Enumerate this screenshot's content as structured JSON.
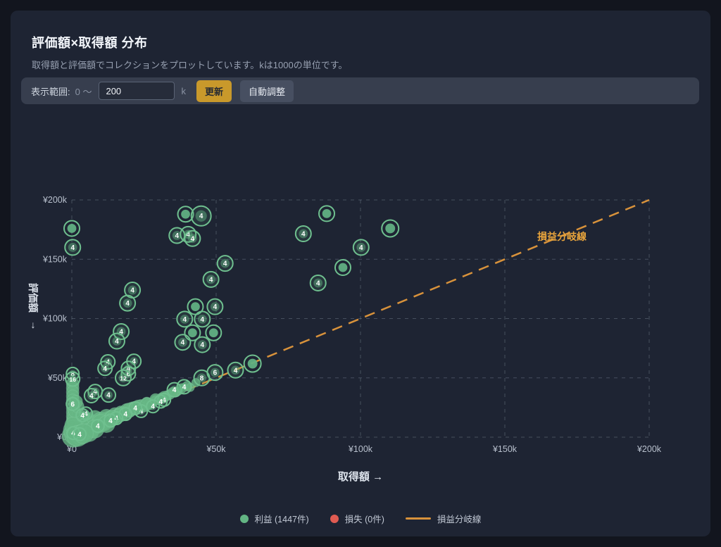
{
  "page": {
    "title": "評価額×取得額 分布",
    "subtitle": "取得額と評価額でコレクションをプロットしています。kは1000の単位です。"
  },
  "controls": {
    "label": "表示範囲:",
    "range_prefix": "0 ～",
    "input_value": "200",
    "unit": "k",
    "update_button": "更新",
    "auto_button": "自動調整"
  },
  "chart_data": {
    "type": "scatter",
    "xlabel": "取得額 →",
    "ylabel": "評価額",
    "ylabel_arrow": "↓",
    "xlim": [
      0,
      200
    ],
    "ylim": [
      0,
      200
    ],
    "unit": "k (×1000 yen)",
    "grid": true,
    "x_ticks": [
      {
        "value": 0,
        "label": "¥0"
      },
      {
        "value": 50,
        "label": "¥50k"
      },
      {
        "value": 100,
        "label": "¥100k"
      },
      {
        "value": 150,
        "label": "¥150k"
      },
      {
        "value": 200,
        "label": "¥200k"
      }
    ],
    "y_ticks": [
      {
        "value": 0,
        "label": "¥0"
      },
      {
        "value": 50,
        "label": "¥50k"
      },
      {
        "value": 100,
        "label": "¥100k"
      },
      {
        "value": 150,
        "label": "¥150k"
      },
      {
        "value": 200,
        "label": "¥200k"
      }
    ],
    "breakeven_line": {
      "from": [
        0,
        0
      ],
      "to": [
        200,
        200
      ],
      "label": "損益分岐線",
      "color": "#d8923b",
      "style": "dashed"
    },
    "legend": [
      {
        "key": "profit",
        "label": "利益 (1447件)",
        "marker": "dot",
        "color": "#63b584"
      },
      {
        "key": "loss",
        "label": "損失 (0件)",
        "marker": "dot",
        "color": "#e05b52"
      },
      {
        "key": "breakeven",
        "label": "損益分岐線",
        "marker": "line",
        "color": "#d8923b"
      }
    ],
    "series": [
      {
        "name": "利益",
        "count": 1447,
        "color": "#63b584",
        "point_format": "[x_k, y_k, radius_px, kind(0=blob,1=single,2=count-bubble), count_label?]",
        "points": [
          [
            0,
            176,
            11,
            1
          ],
          [
            0.3,
            160,
            11,
            2,
            "4"
          ],
          [
            39.4,
            188,
            11,
            1
          ],
          [
            44.8,
            186.5,
            14,
            2,
            "4"
          ],
          [
            36.4,
            170,
            11,
            2,
            "4"
          ],
          [
            40.3,
            171,
            11,
            2,
            "4"
          ],
          [
            41.8,
            167.5,
            11,
            2,
            "4"
          ],
          [
            53.1,
            146.5,
            11,
            2,
            "4"
          ],
          [
            48.2,
            133,
            11,
            2,
            "4"
          ],
          [
            21,
            124,
            11,
            2,
            "4"
          ],
          [
            19.3,
            113,
            11,
            2,
            "4"
          ],
          [
            42.8,
            110,
            11,
            1
          ],
          [
            49.6,
            110,
            11,
            2,
            "4"
          ],
          [
            39.1,
            99.5,
            11,
            2,
            "4"
          ],
          [
            45.2,
            99.5,
            11,
            2,
            "4"
          ],
          [
            17.1,
            89,
            11,
            2,
            "4"
          ],
          [
            41.8,
            88,
            11,
            1
          ],
          [
            49.1,
            88,
            11,
            1
          ],
          [
            88.3,
            188.5,
            11,
            1
          ],
          [
            80.2,
            171.5,
            11,
            2,
            "4"
          ],
          [
            110.3,
            176,
            12,
            1
          ],
          [
            100.2,
            160,
            11,
            2,
            "4"
          ],
          [
            93.9,
            143,
            11,
            1
          ],
          [
            85.3,
            130,
            11,
            2,
            "4"
          ],
          [
            15.6,
            81,
            11,
            2,
            "4"
          ],
          [
            38.4,
            80,
            11,
            2,
            "4"
          ],
          [
            45.2,
            78,
            11,
            2,
            "4"
          ],
          [
            12.5,
            63.5,
            10,
            2,
            "4"
          ],
          [
            21.5,
            64,
            10,
            2,
            "4"
          ],
          [
            11.5,
            58,
            10,
            2,
            "4"
          ],
          [
            19.6,
            58,
            10,
            2,
            "4"
          ],
          [
            19.6,
            53.5,
            10,
            2,
            "6"
          ],
          [
            17.8,
            50,
            11,
            2,
            "12"
          ],
          [
            8.1,
            38.5,
            10,
            2,
            "4"
          ],
          [
            6.8,
            35,
            10,
            2,
            "4"
          ],
          [
            12.7,
            35.5,
            10,
            2,
            "4"
          ],
          [
            45,
            50,
            11,
            2,
            "8"
          ],
          [
            49.6,
            54.5,
            11,
            2,
            "6"
          ],
          [
            56.7,
            56.5,
            11,
            2,
            "4"
          ],
          [
            62.6,
            62,
            12,
            1
          ],
          [
            38.9,
            42.5,
            10,
            2,
            "4"
          ],
          [
            35.5,
            40,
            10,
            2,
            "4"
          ],
          [
            0.3,
            53.5,
            9,
            2,
            "8"
          ],
          [
            0.3,
            49,
            10,
            2,
            "16"
          ],
          [
            0.3,
            45,
            9,
            0
          ],
          [
            0.3,
            41.5,
            9,
            0
          ],
          [
            0.3,
            38,
            9,
            0
          ],
          [
            0.3,
            34.5,
            9,
            0
          ],
          [
            0.3,
            31,
            9,
            0
          ],
          [
            0.3,
            28,
            9,
            2,
            "6"
          ],
          [
            0.3,
            24.5,
            9,
            0
          ],
          [
            0.3,
            21,
            9,
            0
          ],
          [
            0.3,
            17.5,
            9,
            0
          ],
          [
            0.3,
            14,
            9,
            0
          ],
          [
            32,
            31.5,
            9,
            2,
            "4"
          ],
          [
            30.8,
            30,
            9,
            2,
            "4"
          ],
          [
            28.1,
            26,
            9,
            2,
            "4"
          ],
          [
            24,
            22,
            9,
            2,
            "4"
          ],
          [
            22,
            24.5,
            9,
            2,
            "4"
          ],
          [
            18.6,
            19.5,
            9,
            2,
            "4"
          ],
          [
            15.4,
            16,
            9,
            2,
            "4"
          ],
          [
            13.4,
            14,
            9,
            2,
            "4"
          ],
          [
            9,
            9.5,
            9,
            2,
            "4"
          ],
          [
            4.9,
            20,
            9,
            2,
            "4"
          ],
          [
            3.7,
            18.5,
            9,
            2,
            "4"
          ],
          [
            0.5,
            3.5,
            9,
            2,
            "4"
          ],
          [
            2.7,
            2.5,
            9,
            2,
            "4"
          ],
          [
            0.5,
            1,
            16,
            0
          ],
          [
            1.5,
            3,
            17,
            0
          ],
          [
            3,
            5,
            16,
            0
          ],
          [
            4.5,
            7,
            15,
            0
          ],
          [
            6,
            8,
            15,
            0
          ],
          [
            2,
            11,
            13,
            0
          ],
          [
            1,
            15,
            11,
            0
          ],
          [
            2.5,
            18,
            10,
            0
          ],
          [
            4,
            14,
            12,
            0
          ],
          [
            6,
            13,
            12,
            0
          ],
          [
            8,
            11,
            13,
            0
          ],
          [
            5,
            7,
            15,
            0
          ],
          [
            7,
            9,
            14,
            0
          ],
          [
            9,
            11,
            13,
            0
          ],
          [
            11,
            13,
            13,
            0
          ],
          [
            13,
            15,
            12,
            0
          ],
          [
            8,
            16,
            11,
            0
          ],
          [
            10,
            14,
            12,
            0
          ],
          [
            12,
            17,
            11,
            0
          ],
          [
            14,
            16,
            11,
            0
          ],
          [
            15,
            19,
            10,
            0
          ],
          [
            16,
            18,
            10,
            0
          ],
          [
            17,
            21,
            9,
            0
          ],
          [
            18,
            20,
            10,
            0
          ],
          [
            19,
            23,
            9,
            0
          ],
          [
            20,
            22,
            9,
            0
          ],
          [
            21,
            25,
            8,
            0
          ],
          [
            22,
            24,
            9,
            0
          ],
          [
            24,
            27,
            8,
            0
          ],
          [
            25,
            26,
            8,
            0
          ],
          [
            26,
            29,
            8,
            0
          ],
          [
            27,
            28,
            8,
            0
          ],
          [
            29,
            31,
            7,
            0
          ],
          [
            31,
            33,
            7,
            0
          ],
          [
            33,
            35,
            7,
            0
          ],
          [
            34,
            36,
            7,
            0
          ],
          [
            36,
            38,
            7,
            0
          ],
          [
            37,
            39,
            6,
            0
          ],
          [
            40,
            43,
            7,
            0
          ],
          [
            41,
            42,
            6,
            0
          ],
          [
            43,
            46,
            6,
            0
          ],
          [
            10,
            12,
            12,
            0
          ],
          [
            14,
            16,
            11,
            0
          ],
          [
            17,
            19,
            10,
            0
          ],
          [
            20,
            23,
            10,
            0
          ],
          [
            23,
            26,
            9,
            0
          ],
          [
            26,
            28,
            9,
            0
          ],
          [
            29,
            32,
            8,
            0
          ],
          [
            32,
            34,
            8,
            0
          ],
          [
            35,
            38,
            7,
            0
          ],
          [
            38,
            41,
            7,
            0
          ],
          [
            0.5,
            6,
            14,
            0
          ],
          [
            0.5,
            10,
            12,
            0
          ],
          [
            1,
            22,
            9,
            0
          ],
          [
            2,
            26,
            9,
            0
          ],
          [
            1.5,
            30,
            9,
            0
          ],
          [
            3,
            2,
            14,
            0
          ],
          [
            6,
            4,
            13,
            0
          ],
          [
            2,
            1,
            15,
            0
          ],
          [
            8,
            7,
            13,
            0
          ],
          [
            12,
            11,
            12,
            0
          ],
          [
            4,
            3,
            14,
            0
          ]
        ]
      },
      {
        "name": "損失",
        "count": 0,
        "color": "#e05b52",
        "points": []
      }
    ]
  }
}
